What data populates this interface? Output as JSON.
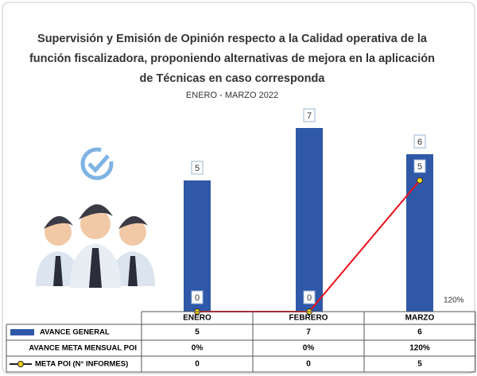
{
  "chart_data": {
    "type": "bar",
    "title": [
      "Supervisión y Emisión de Opinión respecto a la Calidad operativa de la",
      "función fiscalizadora, proponiendo alternativas de mejora en la aplicación",
      "de Técnicas en caso corresponda"
    ],
    "subtitle": "ENERO - MARZO 2022",
    "categories": [
      "ENERO",
      "FEBRERO",
      "MARZO"
    ],
    "series": [
      {
        "name": "AVANCE GENERAL",
        "type": "bar",
        "color": "#2f58a8",
        "values": [
          5,
          7,
          6
        ]
      },
      {
        "name": "AVANCE META MENSUAL POI",
        "type": "none",
        "values": [
          0,
          0,
          120
        ],
        "value_labels": [
          "0%",
          "0%",
          "120%"
        ]
      },
      {
        "name": "META POI (N° INFORMES)",
        "type": "line",
        "color": "#e8101a",
        "marker_color": "#f2d21b",
        "values": [
          0,
          0,
          5
        ]
      }
    ],
    "ylim": [
      0,
      7
    ]
  }
}
